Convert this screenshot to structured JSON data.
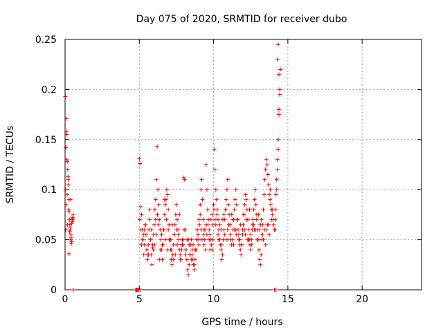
{
  "chart_data": {
    "type": "scatter",
    "title": "Day 075 of 2020, SRMTID for receiver dubo",
    "xlabel": "GPS time / hours",
    "ylabel": "SRMTID / TECUs",
    "xlim": [
      0,
      24
    ],
    "ylim": [
      0,
      0.25
    ],
    "xticks": [
      0,
      5,
      10,
      15,
      20
    ],
    "xtick_labels": [
      "0",
      "5",
      "10",
      "15",
      "20"
    ],
    "yticks": [
      0,
      0.05,
      0.1,
      0.15,
      0.2,
      0.25
    ],
    "ytick_labels": [
      "0",
      "0.05",
      "0.1",
      "0.15",
      "0.2",
      "0.25"
    ],
    "grid": true,
    "marker": "+",
    "color": "#ff0000",
    "series": [
      {
        "name": "SRMTID",
        "x": [
          0.02,
          0.05,
          0.05,
          0.08,
          0.1,
          0.12,
          0.15,
          0.18,
          0.2,
          0.22,
          0.25,
          0.28,
          0.3,
          0.32,
          0.35,
          0.38,
          0.4,
          0.42,
          0.45,
          0.48,
          0.5,
          0.52,
          0.55,
          0.03,
          0.07,
          0.11,
          0.14,
          0.17,
          0.21,
          0.24,
          0.27,
          0.31,
          0.34,
          0.37,
          0.41,
          0.44,
          0.47,
          5.0,
          5.05,
          5.1,
          5.15,
          5.2,
          5.25,
          5.3,
          5.35,
          5.4,
          5.45,
          5.5,
          5.55,
          5.6,
          5.65,
          5.7,
          5.75,
          5.8,
          5.85,
          5.9,
          5.95,
          6.0,
          6.05,
          6.1,
          6.15,
          6.2,
          6.25,
          6.3,
          6.35,
          6.4,
          6.45,
          6.5,
          6.55,
          6.6,
          6.65,
          6.7,
          6.75,
          6.8,
          6.85,
          6.9,
          6.95,
          7.0,
          7.05,
          7.1,
          7.15,
          7.2,
          7.25,
          7.3,
          7.35,
          7.4,
          7.45,
          7.5,
          7.55,
          7.6,
          7.65,
          7.7,
          7.75,
          7.8,
          7.85,
          7.9,
          7.95,
          8.0,
          8.05,
          8.1,
          8.15,
          8.2,
          8.25,
          8.3,
          8.35,
          8.4,
          8.45,
          8.5,
          8.55,
          8.6,
          8.65,
          8.7,
          8.75,
          8.8,
          8.85,
          8.9,
          8.95,
          9.0,
          9.05,
          9.1,
          9.15,
          9.2,
          9.25,
          9.3,
          9.35,
          9.4,
          9.45,
          9.5,
          9.55,
          9.6,
          9.65,
          9.7,
          9.75,
          9.8,
          9.85,
          9.9,
          9.95,
          10.0,
          10.05,
          10.1,
          10.15,
          10.2,
          10.25,
          10.3,
          10.35,
          10.4,
          10.45,
          10.5,
          10.55,
          10.6,
          10.65,
          10.7,
          10.75,
          10.8,
          10.85,
          10.9,
          10.95,
          11.0,
          11.05,
          11.1,
          11.15,
          11.2,
          11.25,
          11.3,
          11.35,
          11.4,
          11.45,
          11.5,
          11.55,
          11.6,
          11.65,
          11.7,
          11.75,
          11.8,
          11.85,
          11.9,
          11.95,
          12.0,
          12.05,
          12.1,
          12.15,
          12.2,
          12.25,
          12.3,
          12.35,
          12.4,
          12.45,
          12.5,
          12.55,
          12.6,
          12.65,
          12.7,
          12.75,
          12.8,
          12.85,
          12.9,
          12.95,
          13.0,
          13.05,
          13.1,
          13.15,
          13.2,
          13.25,
          13.3,
          13.35,
          13.4,
          13.45,
          13.5,
          13.55,
          13.6,
          13.65,
          13.7,
          13.75,
          13.8,
          13.85,
          13.9,
          13.95,
          14.0,
          14.05,
          14.1,
          14.15,
          14.2,
          14.25,
          14.3,
          14.35,
          14.4,
          14.45,
          14.5,
          14.15,
          14.2,
          14.25,
          14.3,
          14.35,
          14.4,
          14.45,
          14.3,
          14.35,
          14.4,
          5.1,
          5.3,
          5.5,
          5.7,
          5.9,
          6.1,
          6.3,
          6.5,
          6.7,
          6.9,
          7.1,
          7.3,
          7.5,
          7.7,
          7.9,
          8.1,
          8.3,
          8.5,
          8.7,
          8.9,
          9.1,
          9.3,
          9.5,
          9.7,
          9.9,
          10.1,
          10.3,
          10.5,
          10.7,
          10.9,
          11.1,
          11.3,
          11.5,
          11.7,
          11.9,
          12.1,
          12.3,
          12.5,
          12.7,
          12.9,
          13.1,
          13.3,
          13.5,
          13.7,
          13.9,
          5.15,
          5.35,
          5.55,
          5.75,
          5.95,
          6.15,
          6.35,
          6.55,
          6.75,
          6.95,
          7.15,
          7.35,
          7.55,
          7.75,
          7.95,
          8.15,
          8.35,
          8.55,
          8.75,
          8.95,
          9.15,
          9.35,
          9.55,
          9.75,
          9.95,
          10.15,
          10.35,
          10.55,
          10.75,
          10.95,
          11.15,
          11.35,
          11.55,
          11.75,
          11.95,
          12.15,
          12.35,
          12.55,
          12.75,
          12.95,
          13.15,
          13.35,
          13.55,
          13.75,
          13.95,
          5.02,
          5.22,
          5.42,
          5.62,
          5.82,
          6.02,
          6.22,
          6.42,
          6.62,
          6.82,
          7.02,
          7.22,
          7.42,
          7.62,
          7.82,
          8.02,
          8.22,
          8.42,
          8.62,
          8.82,
          9.02,
          9.22,
          9.42,
          9.62,
          9.82,
          10.02,
          10.22,
          10.42,
          10.62,
          10.82,
          11.02,
          11.22,
          11.42,
          11.62,
          11.82,
          12.02,
          12.22,
          12.42,
          12.62,
          12.82,
          13.02,
          13.22,
          13.42,
          13.62,
          13.82,
          0.55,
          4.75,
          4.8,
          4.85,
          4.9,
          4.95,
          5.05,
          14.1,
          14.2
        ],
        "y": [
          0.193,
          0.06,
          0.142,
          0.171,
          0.155,
          0.158,
          0.128,
          0.12,
          0.113,
          0.105,
          0.09,
          0.078,
          0.07,
          0.065,
          0.06,
          0.055,
          0.05,
          0.046,
          0.048,
          0.068,
          0.07,
          0.072,
          0.075,
          0.1,
          0.085,
          0.13,
          0.095,
          0.065,
          0.11,
          0.08,
          0.036,
          0.058,
          0.062,
          0.09,
          0.052,
          0.066,
          0.071,
          0.131,
          0.126,
          0.083,
          0.075,
          0.06,
          0.05,
          0.035,
          0.045,
          0.065,
          0.055,
          0.04,
          0.03,
          0.045,
          0.06,
          0.07,
          0.05,
          0.035,
          0.025,
          0.042,
          0.055,
          0.065,
          0.08,
          0.09,
          0.11,
          0.143,
          0.1,
          0.085,
          0.07,
          0.06,
          0.05,
          0.04,
          0.03,
          0.045,
          0.06,
          0.075,
          0.085,
          0.09,
          0.1,
          0.095,
          0.08,
          0.065,
          0.05,
          0.04,
          0.03,
          0.025,
          0.035,
          0.045,
          0.055,
          0.065,
          0.075,
          0.085,
          0.07,
          0.06,
          0.05,
          0.04,
          0.035,
          0.03,
          0.04,
          0.05,
          0.045,
          0.112,
          0.11,
          0.06,
          0.04,
          0.03,
          0.02,
          0.015,
          0.025,
          0.035,
          0.045,
          0.05,
          0.04,
          0.03,
          0.025,
          0.02,
          0.03,
          0.04,
          0.05,
          0.06,
          0.055,
          0.045,
          0.065,
          0.085,
          0.1,
          0.11,
          0.09,
          0.07,
          0.06,
          0.05,
          0.04,
          0.125,
          0.1,
          0.08,
          0.07,
          0.06,
          0.055,
          0.05,
          0.045,
          0.04,
          0.065,
          0.085,
          0.14,
          0.12,
          0.1,
          0.09,
          0.08,
          0.07,
          0.06,
          0.05,
          0.045,
          0.04,
          0.03,
          0.035,
          0.05,
          0.06,
          0.07,
          0.08,
          0.09,
          0.1,
          0.11,
          0.085,
          0.075,
          0.065,
          0.055,
          0.045,
          0.05,
          0.06,
          0.07,
          0.08,
          0.09,
          0.1,
          0.085,
          0.07,
          0.06,
          0.05,
          0.045,
          0.04,
          0.035,
          0.045,
          0.055,
          0.065,
          0.075,
          0.085,
          0.095,
          0.09,
          0.08,
          0.07,
          0.06,
          0.05,
          0.045,
          0.04,
          0.05,
          0.06,
          0.07,
          0.08,
          0.09,
          0.1,
          0.085,
          0.07,
          0.06,
          0.05,
          0.04,
          0.03,
          0.025,
          0.035,
          0.05,
          0.065,
          0.08,
          0.095,
          0.11,
          0.12,
          0.13,
          0.125,
          0.115,
          0.105,
          0.095,
          0.09,
          0.085,
          0.08,
          0.075,
          0.07,
          0.065,
          0.06,
          0.07,
          0.095,
          0.11,
          0.13,
          0.15,
          0.175,
          0.2,
          0.22,
          0.06,
          0.08,
          0.1,
          0.12,
          0.14,
          0.18,
          0.195,
          0.23,
          0.245,
          0.215,
          0.06,
          0.055,
          0.04,
          0.08,
          0.045,
          0.07,
          0.065,
          0.055,
          0.09,
          0.04,
          0.05,
          0.03,
          0.06,
          0.075,
          0.045,
          0.035,
          0.05,
          0.03,
          0.025,
          0.06,
          0.075,
          0.055,
          0.065,
          0.05,
          0.075,
          0.07,
          0.055,
          0.06,
          0.075,
          0.05,
          0.065,
          0.07,
          0.06,
          0.055,
          0.045,
          0.06,
          0.05,
          0.055,
          0.065,
          0.075,
          0.06,
          0.055,
          0.045,
          0.065,
          0.07,
          0.045,
          0.06,
          0.035,
          0.05,
          0.04,
          0.055,
          0.03,
          0.045,
          0.05,
          0.06,
          0.04,
          0.055,
          0.045,
          0.03,
          0.05,
          0.04,
          0.045,
          0.035,
          0.04,
          0.05,
          0.06,
          0.045,
          0.055,
          0.04,
          0.05,
          0.065,
          0.05,
          0.045,
          0.055,
          0.06,
          0.05,
          0.045,
          0.055,
          0.05,
          0.06,
          0.055,
          0.05,
          0.045,
          0.06,
          0.05,
          0.065,
          0.05,
          0.06,
          0.055,
          0.08,
          0.07,
          0.05,
          0.065,
          0.035,
          0.06,
          0.045,
          0.075,
          0.04,
          0.06,
          0.07,
          0.05,
          0.065,
          0.035,
          0.055,
          0.045,
          0.06,
          0.05,
          0.035,
          0.045,
          0.04,
          0.07,
          0.05,
          0.06,
          0.065,
          0.07,
          0.08,
          0.075,
          0.065,
          0.07,
          0.08,
          0.065,
          0.075,
          0.06,
          0.07,
          0.065,
          0.075,
          0.07,
          0.08,
          0.065,
          0.06,
          0.075,
          0.07,
          0.06,
          0.065,
          0.1,
          0.0,
          0.0,
          0.0,
          0.0,
          0.0,
          0.0,
          0.0,
          0.0,
          0.0
        ]
      }
    ]
  }
}
